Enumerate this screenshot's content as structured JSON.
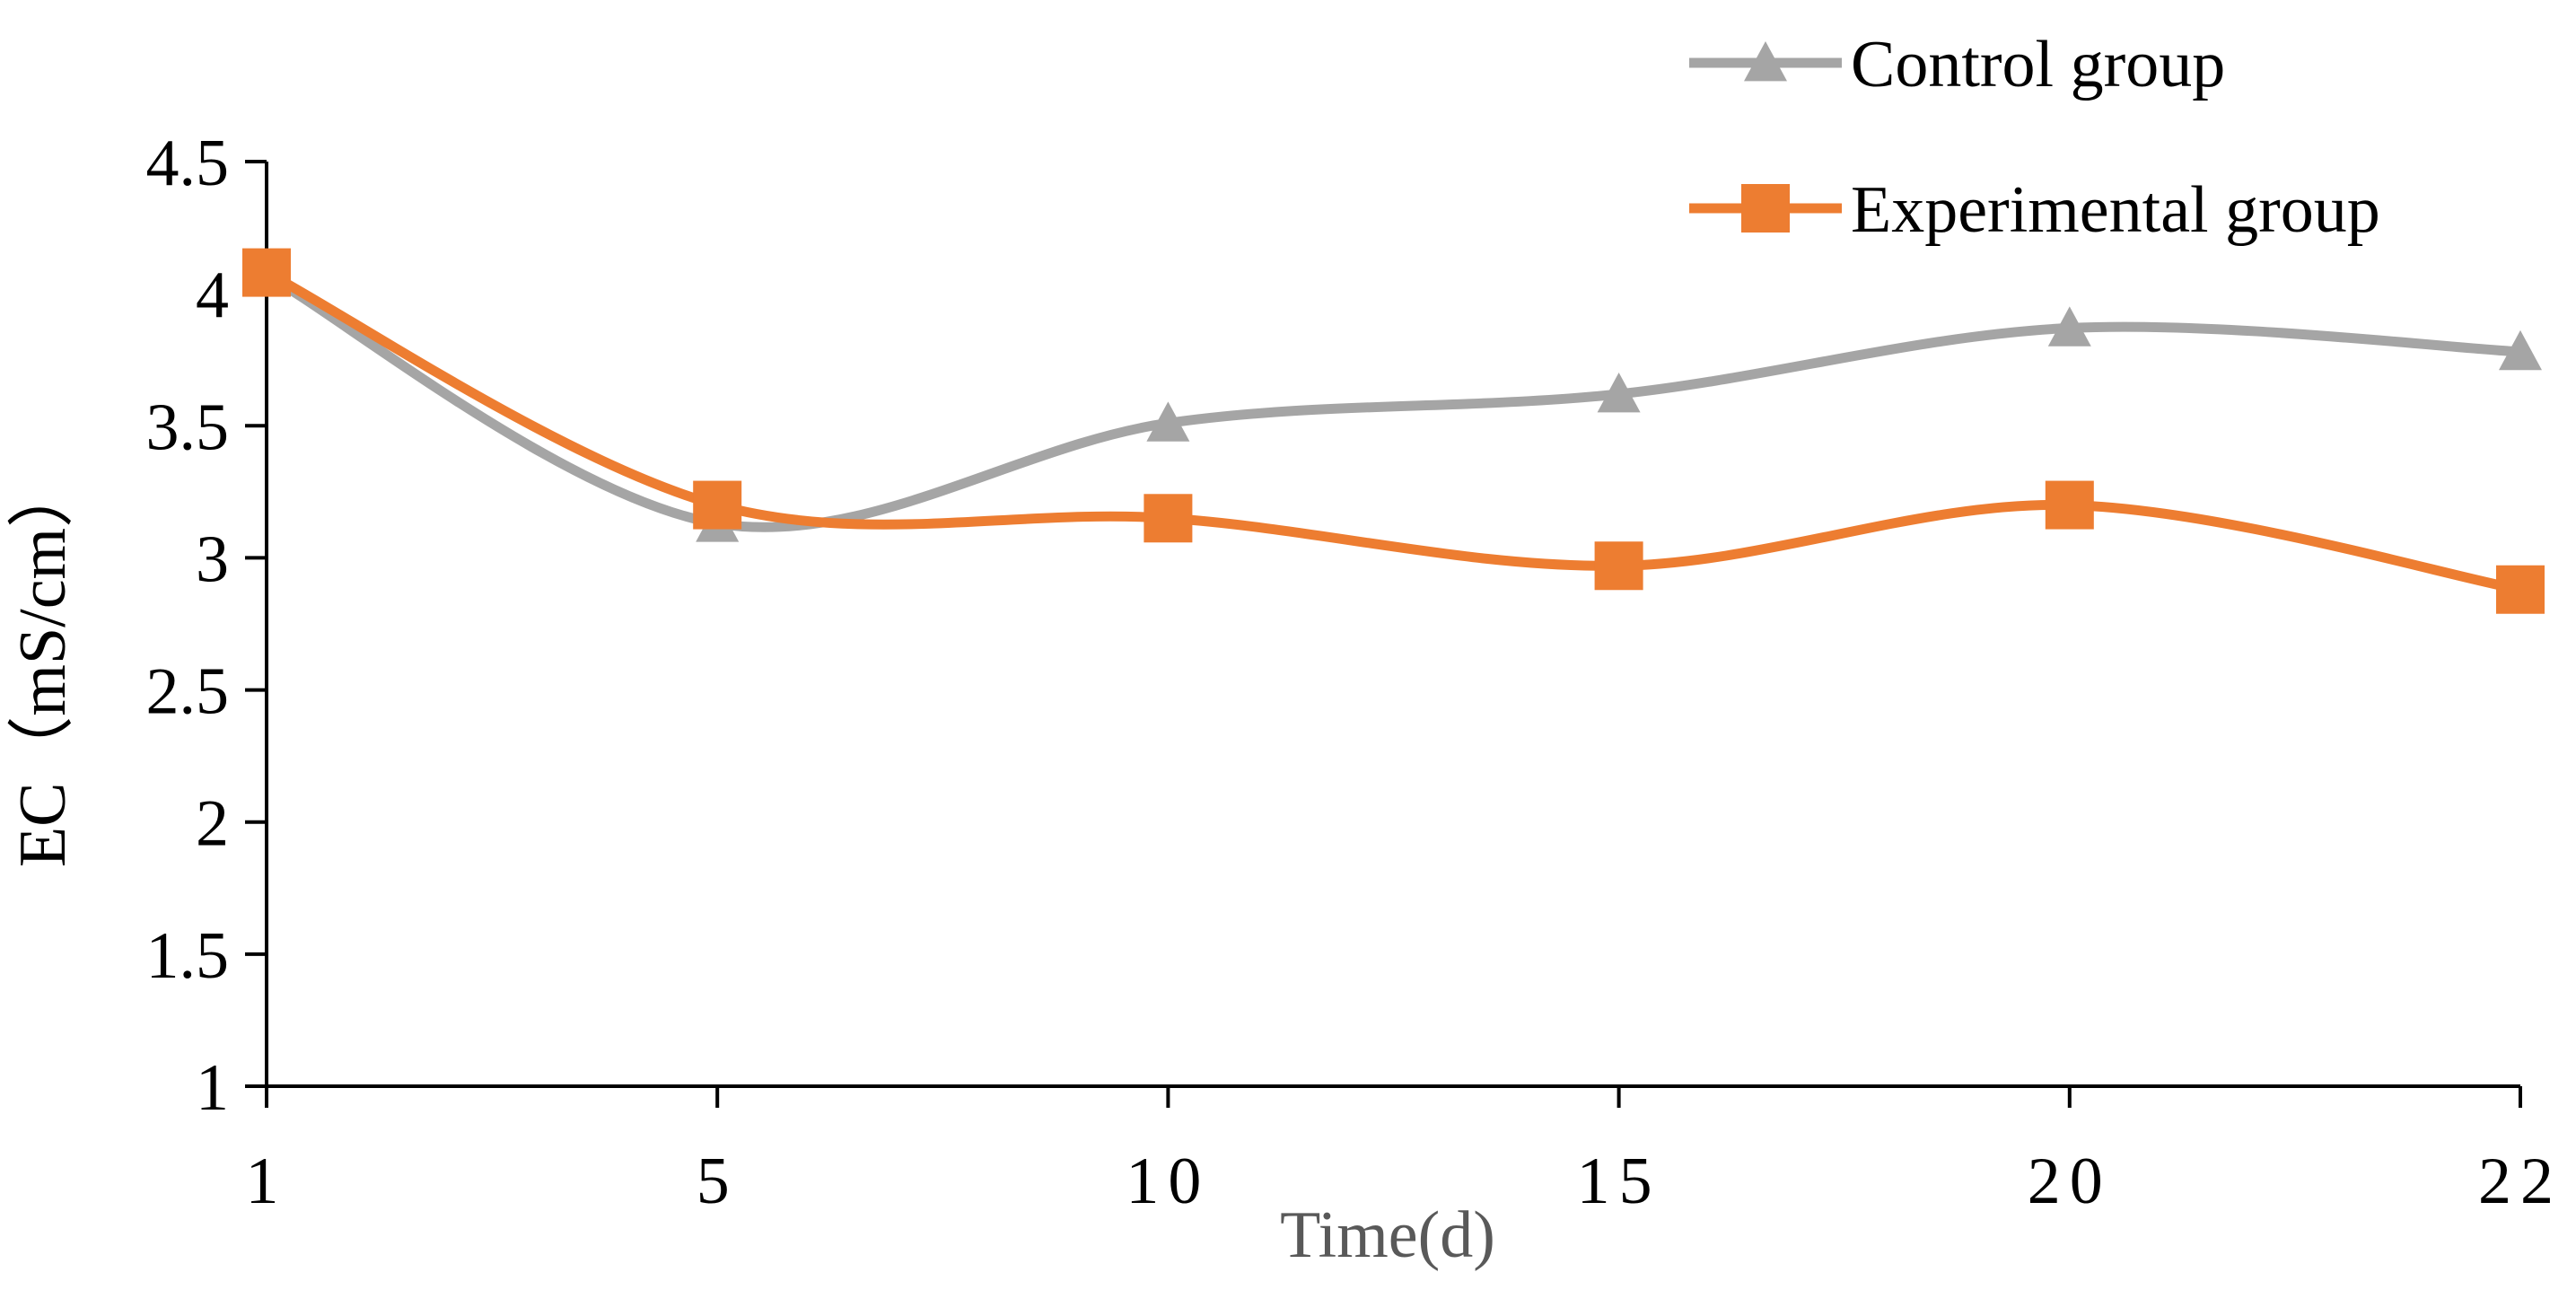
{
  "chart_data": {
    "type": "line",
    "title": "",
    "xlabel": "Time(d)",
    "ylabel": "EC（mS/cm）",
    "categories": [
      "1",
      "5",
      "10",
      "15",
      "20",
      "22"
    ],
    "ylim": [
      1,
      4.5
    ],
    "yticks": [
      "1",
      "1.5",
      "2",
      "2.5",
      "3",
      "3.5",
      "4",
      "4.5"
    ],
    "grid": false,
    "legend_position": "top-right",
    "smooth": true,
    "series": [
      {
        "name": "Control group",
        "marker": "triangle",
        "color": "#A5A5A5",
        "values": [
          4.07,
          3.13,
          3.51,
          3.62,
          3.87,
          3.78
        ]
      },
      {
        "name": "Experimental group",
        "marker": "square",
        "color": "#ED7D31",
        "values": [
          4.08,
          3.2,
          3.15,
          2.97,
          3.2,
          2.88
        ]
      }
    ]
  }
}
